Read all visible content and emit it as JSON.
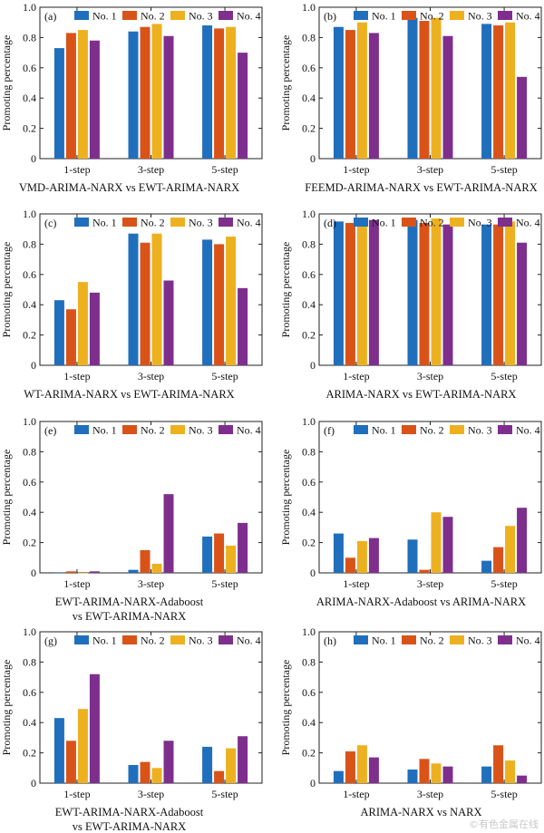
{
  "colors": {
    "No. 1": "#1f6fbd",
    "No. 2": "#d95319",
    "No. 3": "#edb120",
    "No. 4": "#7e2f8e"
  },
  "watermark": "©有色金属在线",
  "chart_data": [
    {
      "type": "bar",
      "panel": "(a)",
      "caption": [
        "VMD-ARIMA-NARX vs EWT-ARIMA-NARX"
      ],
      "ylabel": "Promoting percentage",
      "ylim": [
        0,
        1.0
      ],
      "yticks": [
        0,
        0.2,
        0.4,
        0.6,
        0.8,
        1.0
      ],
      "ytick_labels": [
        "0",
        "0.2",
        "0.4",
        "0.6",
        "0.8",
        "1.0"
      ],
      "categories": [
        "1-step",
        "3-step",
        "5-step"
      ],
      "legend": "top",
      "series": [
        {
          "name": "No. 1",
          "values": [
            0.73,
            0.84,
            0.88
          ]
        },
        {
          "name": "No. 2",
          "values": [
            0.83,
            0.87,
            0.86
          ]
        },
        {
          "name": "No. 3",
          "values": [
            0.85,
            0.89,
            0.87
          ]
        },
        {
          "name": "No. 4",
          "values": [
            0.78,
            0.81,
            0.7
          ]
        }
      ]
    },
    {
      "type": "bar",
      "panel": "(b)",
      "caption": [
        "FEEMD-ARIMA-NARX vs EWT-ARIMA-NARX"
      ],
      "ylabel": "Promoting percentage",
      "ylim": [
        0,
        1.0
      ],
      "yticks": [
        0,
        0.2,
        0.4,
        0.6,
        0.8,
        1.0
      ],
      "ytick_labels": [
        "0",
        "0.2",
        "0.4",
        "0.6",
        "0.8",
        "1.0"
      ],
      "categories": [
        "1-step",
        "3-step",
        "5-step"
      ],
      "legend": "top",
      "series": [
        {
          "name": "No. 1",
          "values": [
            0.87,
            0.93,
            0.89
          ]
        },
        {
          "name": "No. 2",
          "values": [
            0.85,
            0.91,
            0.88
          ]
        },
        {
          "name": "No. 3",
          "values": [
            0.9,
            0.93,
            0.9
          ]
        },
        {
          "name": "No. 4",
          "values": [
            0.83,
            0.81,
            0.54
          ]
        }
      ]
    },
    {
      "type": "bar",
      "panel": "(c)",
      "caption": [
        "WT-ARIMA-NARX vs EWT-ARIMA-NARX"
      ],
      "ylabel": "Promoting percentage",
      "ylim": [
        0,
        1.0
      ],
      "yticks": [
        0,
        0.2,
        0.4,
        0.6,
        0.8,
        1.0
      ],
      "ytick_labels": [
        "0",
        "0.2",
        "0.4",
        "0.6",
        "0.8",
        "1.0"
      ],
      "categories": [
        "1-step",
        "3-step",
        "5-step"
      ],
      "legend": "top",
      "series": [
        {
          "name": "No. 1",
          "values": [
            0.43,
            0.87,
            0.83
          ]
        },
        {
          "name": "No. 2",
          "values": [
            0.37,
            0.81,
            0.8
          ]
        },
        {
          "name": "No. 3",
          "values": [
            0.55,
            0.87,
            0.85
          ]
        },
        {
          "name": "No. 4",
          "values": [
            0.48,
            0.56,
            0.51
          ]
        }
      ]
    },
    {
      "type": "bar",
      "panel": "(d)",
      "caption": [
        "ARIMA-NARX vs EWT-ARIMA-NARX"
      ],
      "ylabel": "Promoting percentage",
      "ylim": [
        0,
        1.0
      ],
      "yticks": [
        0,
        0.2,
        0.4,
        0.6,
        0.8,
        1.0
      ],
      "ytick_labels": [
        "0",
        "0.2",
        "0.4",
        "0.6",
        "0.8",
        "1.0"
      ],
      "categories": [
        "1-step",
        "3-step",
        "5-step"
      ],
      "legend": "top",
      "series": [
        {
          "name": "No. 1",
          "values": [
            0.95,
            0.96,
            0.93
          ]
        },
        {
          "name": "No. 2",
          "values": [
            0.94,
            0.94,
            0.93
          ]
        },
        {
          "name": "No. 3",
          "values": [
            0.97,
            0.97,
            0.95
          ]
        },
        {
          "name": "No. 4",
          "values": [
            0.96,
            0.93,
            0.81
          ]
        }
      ]
    },
    {
      "type": "bar",
      "panel": "(e)",
      "caption": [
        "EWT-ARIMA-NARX-Adaboost",
        "vs EWT-ARIMA-NARX"
      ],
      "ylabel": "Promoting percentage",
      "ylim": [
        0,
        1.0
      ],
      "yticks": [
        0,
        0.2,
        0.4,
        0.6,
        0.8,
        1.0
      ],
      "ytick_labels": [
        "0",
        "0.2",
        "0.4",
        "0.6",
        "0.8",
        "1.0"
      ],
      "categories": [
        "1-step",
        "3-step",
        "5-step"
      ],
      "legend": "top",
      "series": [
        {
          "name": "No. 1",
          "values": [
            0.0,
            0.02,
            0.24
          ]
        },
        {
          "name": "No. 2",
          "values": [
            0.01,
            0.15,
            0.26
          ]
        },
        {
          "name": "No. 3",
          "values": [
            0.0,
            0.06,
            0.18
          ]
        },
        {
          "name": "No. 4",
          "values": [
            0.01,
            0.52,
            0.33
          ]
        }
      ]
    },
    {
      "type": "bar",
      "panel": "(f)",
      "caption": [
        "ARIMA-NARX-Adaboost vs ARIMA-NARX"
      ],
      "ylabel": "Promoting percentage",
      "ylim": [
        0,
        1.0
      ],
      "yticks": [
        0,
        0.2,
        0.4,
        0.6,
        0.8,
        1.0
      ],
      "ytick_labels": [
        "0",
        "0.2",
        "0.4",
        "0.6",
        "0.8",
        "1.0"
      ],
      "categories": [
        "1-step",
        "3-step",
        "5-step"
      ],
      "legend": "top",
      "series": [
        {
          "name": "No. 1",
          "values": [
            0.26,
            0.22,
            0.08
          ]
        },
        {
          "name": "No. 2",
          "values": [
            0.1,
            0.02,
            0.17
          ]
        },
        {
          "name": "No. 3",
          "values": [
            0.21,
            0.4,
            0.31
          ]
        },
        {
          "name": "No. 4",
          "values": [
            0.23,
            0.37,
            0.43
          ]
        }
      ]
    },
    {
      "type": "bar",
      "panel": "(g)",
      "caption": [
        "EWT-ARIMA-NARX-Adaboost",
        "vs EWT-ARIMA-NARX"
      ],
      "ylabel": "Promoting percentage",
      "ylim": [
        0,
        1.0
      ],
      "yticks": [
        0,
        0.2,
        0.4,
        0.6,
        0.8,
        1.0
      ],
      "ytick_labels": [
        "0",
        "0.2",
        "0.4",
        "0.6",
        "0.8",
        "1.0"
      ],
      "categories": [
        "1-step",
        "3-step",
        "5-step"
      ],
      "legend": "top",
      "series": [
        {
          "name": "No. 1",
          "values": [
            0.43,
            0.12,
            0.24
          ]
        },
        {
          "name": "No. 2",
          "values": [
            0.28,
            0.14,
            0.08
          ]
        },
        {
          "name": "No. 3",
          "values": [
            0.49,
            0.1,
            0.23
          ]
        },
        {
          "name": "No. 4",
          "values": [
            0.72,
            0.28,
            0.31
          ]
        }
      ]
    },
    {
      "type": "bar",
      "panel": "(h)",
      "caption": [
        "ARIMA-NARX vs NARX"
      ],
      "ylabel": "Promoting percentage",
      "ylim": [
        0,
        1.0
      ],
      "yticks": [
        0,
        0.2,
        0.4,
        0.6,
        0.8,
        1.0
      ],
      "ytick_labels": [
        "0",
        "0.2",
        "0.4",
        "0.6",
        "0.8",
        "1.0"
      ],
      "categories": [
        "1-step",
        "3-step",
        "5-step"
      ],
      "legend": "top",
      "series": [
        {
          "name": "No. 1",
          "values": [
            0.08,
            0.09,
            0.11
          ]
        },
        {
          "name": "No. 2",
          "values": [
            0.21,
            0.16,
            0.25
          ]
        },
        {
          "name": "No. 3",
          "values": [
            0.25,
            0.13,
            0.15
          ]
        },
        {
          "name": "No. 4",
          "values": [
            0.17,
            0.11,
            0.05
          ]
        }
      ]
    }
  ]
}
